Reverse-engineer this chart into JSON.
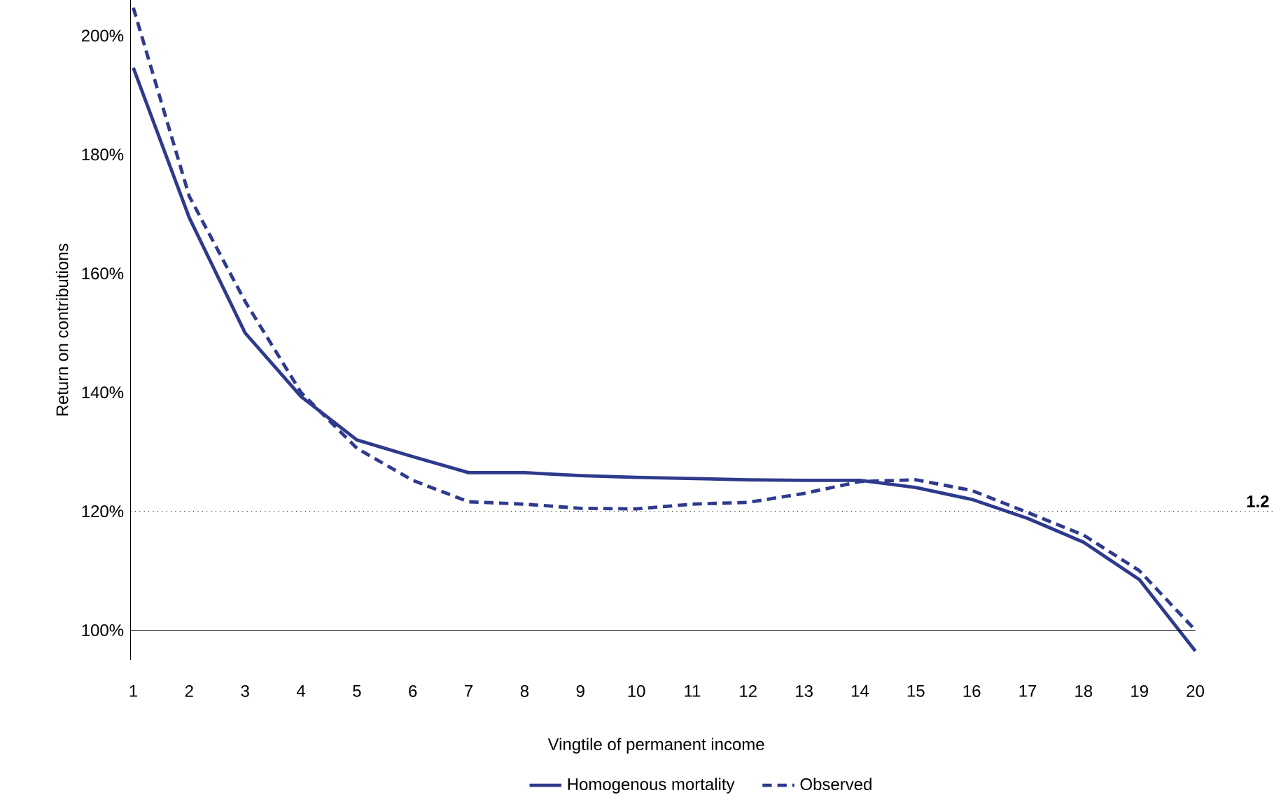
{
  "chart_data": {
    "type": "line",
    "xlabel": "Vingtile of permanent income",
    "ylabel": "Return on contributions",
    "categories": [
      "1",
      "2",
      "3",
      "4",
      "5",
      "6",
      "7",
      "8",
      "9",
      "10",
      "11",
      "12",
      "13",
      "14",
      "15",
      "16",
      "17",
      "18",
      "19",
      "20"
    ],
    "series": [
      {
        "name": "Homogenous mortality",
        "color": "#2e3a8c",
        "line_style": "solid",
        "values": [
          194.6,
          169.4,
          150,
          139.3,
          132,
          129.2,
          126.5,
          126.5,
          126,
          125.7,
          125.5,
          125.3,
          125.2,
          125.2,
          124,
          122,
          118.8,
          114.8,
          108.5,
          96.5
        ]
      },
      {
        "name": "Observed",
        "color": "#2e3a8c",
        "line_style": "dashed",
        "values": [
          204.7,
          173,
          155.3,
          140,
          130.6,
          125.2,
          121.6,
          121.2,
          120.5,
          120.4,
          121.2,
          121.5,
          123,
          125,
          125.3,
          123.5,
          119.8,
          116,
          110,
          100
        ]
      }
    ],
    "ylim": [
      95,
      206
    ],
    "yticks": [
      {
        "value": 100,
        "label": "100%"
      },
      {
        "value": 120,
        "label": "120%"
      },
      {
        "value": 140,
        "label": "140%"
      },
      {
        "value": 160,
        "label": "160%"
      },
      {
        "value": 180,
        "label": "180%"
      },
      {
        "value": 200,
        "label": "200%"
      }
    ],
    "ref_lines": [
      {
        "axis": "y",
        "value": 120,
        "line_style": "dotted",
        "color": "#000000"
      },
      {
        "axis": "y",
        "value": 100,
        "line_style": "solid",
        "color": "#000000"
      }
    ],
    "annotations": [
      "1.2"
    ],
    "grid": false,
    "legend": "bottom",
    "marker": "none"
  }
}
